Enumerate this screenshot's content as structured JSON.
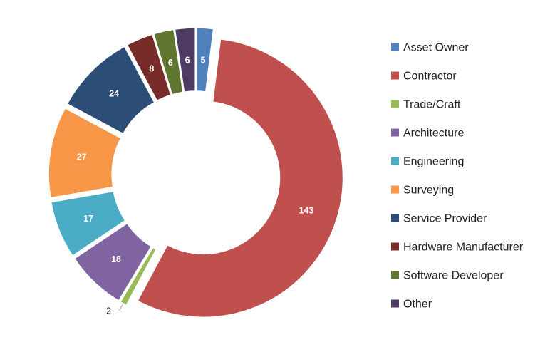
{
  "chart_data": {
    "type": "pie",
    "donut": true,
    "exploded": true,
    "title": "",
    "legend_position": "right",
    "categories": [
      "Asset Owner",
      "Contractor",
      "Trade/Craft",
      "Architecture",
      "Engineering",
      "Surveying",
      "Service Provider",
      "Hardware Manufacturer",
      "Software Developer",
      "Other"
    ],
    "values": [
      5,
      143,
      2,
      18,
      17,
      27,
      24,
      8,
      6,
      6
    ],
    "colors": [
      "#4F81BD",
      "#C0504D",
      "#9BBB59",
      "#8064A2",
      "#4BACC6",
      "#F79646",
      "#2C4D75",
      "#772C2A",
      "#5F7530",
      "#4D3B62"
    ],
    "data_labels": [
      "5",
      "143",
      "2",
      "18",
      "17",
      "27",
      "24",
      "8",
      "6",
      "6"
    ]
  }
}
